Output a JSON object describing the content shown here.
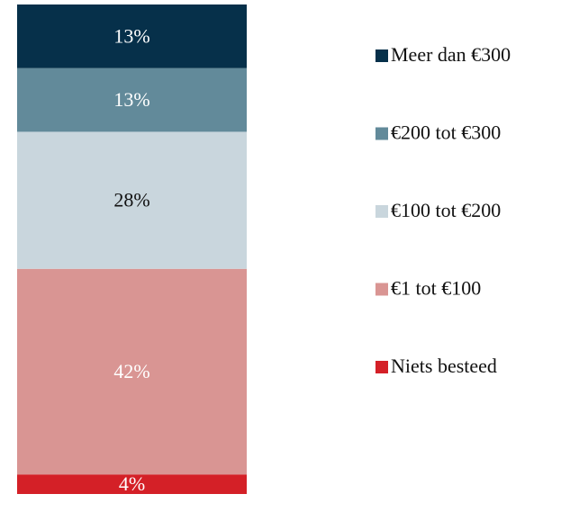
{
  "chart_data": {
    "type": "stacked_bar",
    "categories": [
      null
    ],
    "ylim": [
      0,
      100
    ],
    "series": [
      {
        "name": "Niets besteed",
        "color": "#d42027",
        "values": [
          4
        ],
        "value_labels": [
          "4%"
        ]
      },
      {
        "name": "€1 tot €100",
        "color": "#d99593",
        "values": [
          42
        ],
        "value_labels": [
          "42%"
        ]
      },
      {
        "name": "€100 tot €200",
        "color": "#c9d6dd",
        "values": [
          28
        ],
        "value_labels": [
          "28%"
        ]
      },
      {
        "name": "€200 tot €300",
        "color": "#628a9a",
        "values": [
          13
        ],
        "value_labels": [
          "13%"
        ]
      },
      {
        "name": "Meer dan €300",
        "color": "#06304a",
        "values": [
          13
        ],
        "value_labels": [
          "13%"
        ]
      }
    ],
    "legend": "right"
  }
}
